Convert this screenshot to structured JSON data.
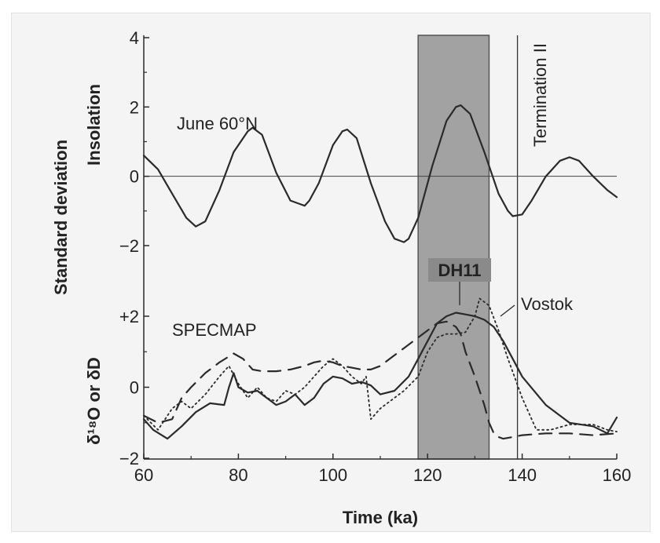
{
  "chart_data": {
    "type": "line",
    "xlabel": "Time (ka)",
    "xlim": [
      60,
      160
    ],
    "x_ticks": [
      "60",
      "80",
      "100",
      "120",
      "140",
      "160"
    ],
    "top_panel": {
      "ylabel": "Insolation",
      "ylim": [
        -2,
        4
      ],
      "y_ticks": [
        "4",
        "2",
        "0",
        "−2"
      ],
      "series": [
        {
          "name": "June 60°N",
          "style": "solid",
          "x": [
            60,
            63,
            66,
            69,
            71,
            73,
            76,
            79,
            82,
            83,
            85,
            88,
            91,
            94,
            95,
            97,
            100,
            102,
            103,
            105,
            108,
            111,
            113,
            115,
            116,
            118,
            121,
            124,
            126,
            127,
            129,
            132,
            135,
            137,
            138,
            140,
            142,
            145,
            148,
            150,
            152,
            155,
            158,
            160
          ],
          "y": [
            0.6,
            0.2,
            -0.5,
            -1.2,
            -1.45,
            -1.3,
            -0.4,
            0.7,
            1.3,
            1.4,
            1.2,
            0.1,
            -0.7,
            -0.85,
            -0.7,
            -0.2,
            0.9,
            1.3,
            1.35,
            1.1,
            -0.2,
            -1.3,
            -1.8,
            -1.9,
            -1.8,
            -1.2,
            0.3,
            1.6,
            2.0,
            2.05,
            1.8,
            0.7,
            -0.5,
            -1.0,
            -1.15,
            -1.1,
            -0.7,
            0.0,
            0.45,
            0.55,
            0.45,
            0.0,
            -0.4,
            -0.6
          ]
        }
      ]
    },
    "bottom_panel": {
      "ylabel": "δ¹⁸O or δD",
      "ylim": [
        -2,
        2.5
      ],
      "y_ticks": [
        "+2",
        "0",
        "−2"
      ],
      "series": [
        {
          "name": "DH11",
          "style": "solid",
          "x": [
            60,
            62,
            65,
            68,
            71,
            74,
            77,
            78,
            79,
            80,
            82,
            84,
            86,
            88,
            90,
            92,
            94,
            96,
            98,
            100,
            102,
            104,
            106,
            108,
            110,
            113,
            116,
            118,
            120,
            122,
            124,
            126,
            128,
            130,
            132,
            134,
            136,
            138,
            140,
            145,
            150,
            155,
            158,
            160
          ],
          "y": [
            -0.9,
            -1.2,
            -1.45,
            -1.1,
            -0.7,
            -0.45,
            -0.5,
            0.0,
            0.4,
            0.0,
            -0.15,
            -0.1,
            -0.3,
            -0.5,
            -0.4,
            -0.2,
            -0.5,
            -0.3,
            0.1,
            0.3,
            0.25,
            0.1,
            0.15,
            0.05,
            -0.2,
            -0.1,
            0.3,
            0.8,
            1.3,
            1.8,
            2.0,
            2.1,
            2.05,
            2.0,
            1.9,
            1.7,
            1.3,
            0.8,
            0.3,
            -0.5,
            -1.0,
            -1.1,
            -1.3,
            -0.85
          ]
        },
        {
          "name": "Vostok",
          "style": "dotted",
          "x": [
            60,
            63,
            66,
            68,
            70,
            73,
            76,
            78,
            80,
            82,
            84,
            86,
            88,
            90,
            92,
            94,
            96,
            98,
            100,
            102,
            104,
            106,
            107,
            108,
            110,
            112,
            115,
            118,
            120,
            122,
            124,
            126,
            128,
            130,
            131,
            133,
            135,
            137,
            140,
            143,
            146,
            150,
            155,
            158,
            160
          ],
          "y": [
            -0.8,
            -1.2,
            -0.6,
            -0.4,
            -0.6,
            -0.2,
            0.3,
            0.6,
            0.1,
            -0.3,
            0.0,
            -0.3,
            -0.4,
            -0.1,
            -0.2,
            0.0,
            0.3,
            0.6,
            0.8,
            0.6,
            0.3,
            0.1,
            0.3,
            -0.9,
            -0.6,
            -0.4,
            -0.1,
            0.3,
            1.0,
            1.4,
            1.5,
            1.5,
            1.55,
            2.0,
            2.5,
            2.3,
            1.6,
            0.8,
            -0.3,
            -1.2,
            -1.2,
            -1.05,
            -1.05,
            -1.2,
            -1.25
          ]
        },
        {
          "name": "SPECMAP",
          "style": "dashed",
          "x": [
            60,
            63,
            66,
            68,
            70,
            73,
            76,
            79,
            81,
            83,
            85,
            88,
            91,
            94,
            96,
            98,
            100,
            102,
            104,
            106,
            108,
            110,
            112,
            115,
            118,
            120,
            122,
            124,
            126,
            127,
            128,
            130,
            132,
            133,
            134,
            135,
            136,
            138,
            140,
            145,
            150,
            155,
            160
          ],
          "y": [
            -0.8,
            -1.0,
            -0.9,
            -0.3,
            0.0,
            0.4,
            0.7,
            0.95,
            0.8,
            0.5,
            0.45,
            0.45,
            0.5,
            0.6,
            0.7,
            0.75,
            0.7,
            0.6,
            0.55,
            0.5,
            0.5,
            0.6,
            0.8,
            1.1,
            1.4,
            1.6,
            1.8,
            1.85,
            1.7,
            1.5,
            1.0,
            0.3,
            -0.5,
            -1.0,
            -1.3,
            -1.4,
            -1.45,
            -1.4,
            -1.35,
            -1.3,
            -1.3,
            -1.35,
            -1.3
          ]
        }
      ]
    },
    "shaded_band": {
      "x_start": 118,
      "x_end": 133
    },
    "vertical_line": {
      "x": 139,
      "label": "Termination II"
    },
    "annotations": {
      "june": "June 60°N",
      "dh11": "DH11",
      "vostok": "Vostok",
      "specmap": "SPECMAP",
      "shared_ylabel": "Standard deviation"
    },
    "colors": {
      "line": "#2a2a2a",
      "band": "#a2a2a2",
      "band_edge": "#555555",
      "panel": "#f4f4f4"
    }
  }
}
